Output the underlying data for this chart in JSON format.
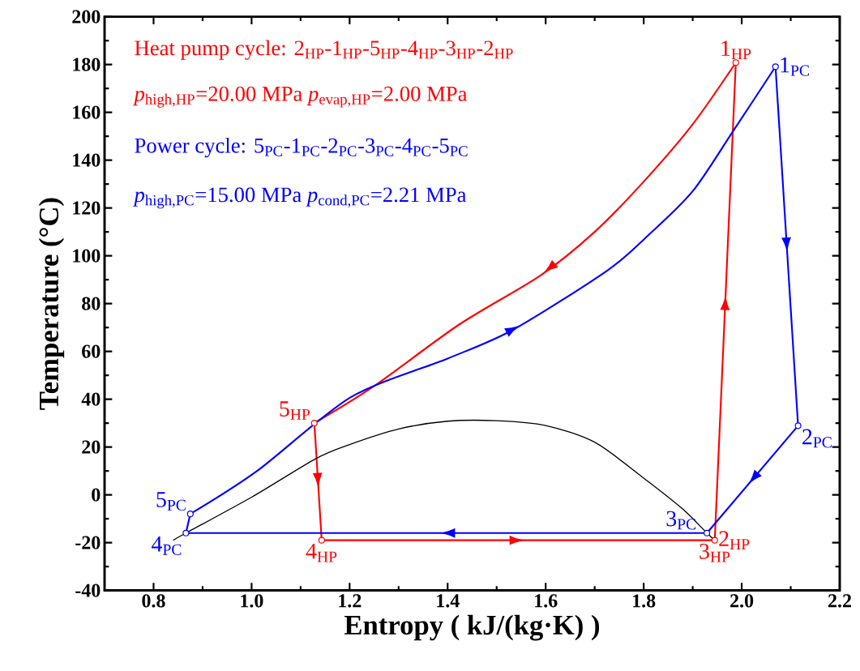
{
  "chart_data": {
    "type": "line",
    "xlabel": "Entropy ( kJ/(kg·K) )",
    "ylabel": "Temperature (°C)",
    "xlim": [
      0.7,
      2.2
    ],
    "ylim": [
      -40,
      200
    ],
    "xticks": [
      0.8,
      {
        "value": 1,
        "label": "1.0"
      },
      1.2,
      1.4,
      1.6,
      1.8,
      {
        "value": 2,
        "label": "2.0"
      },
      2.2
    ],
    "yticks": [
      -40,
      -20,
      0,
      20,
      40,
      60,
      80,
      100,
      120,
      140,
      160,
      180,
      200
    ],
    "series": [
      {
        "color": "#ff0000",
        "marker": "none",
        "x": [
          1.945,
          1.988
        ],
        "values": [
          -19,
          180.8
        ]
      },
      {
        "color": "#ff0000",
        "marker": "none",
        "x": [
          1.988,
          1.9,
          1.8,
          1.7,
          1.589,
          1.424,
          1.25,
          1.128
        ],
        "values": [
          180.8,
          155,
          131,
          110,
          91.7,
          71.3,
          45.5,
          30
        ]
      },
      {
        "color": "#ff0000",
        "marker": "none",
        "x": [
          1.128,
          1.143
        ],
        "values": [
          30,
          -19
        ]
      },
      {
        "color": "#ff0000",
        "marker": "none",
        "x": [
          1.143,
          1.945
        ],
        "values": [
          -19,
          -19
        ]
      },
      {
        "color": "#0000ff",
        "marker": "none",
        "x": [
          0.875,
          1.01,
          1.203,
          1.4,
          1.534,
          1.727,
          1.81,
          1.9,
          1.981,
          2.069
        ],
        "values": [
          -8,
          9.8,
          40.9,
          57,
          69.1,
          94,
          108.7,
          127,
          151.7,
          179.1
        ]
      },
      {
        "color": "#0000ff",
        "marker": "none",
        "x": [
          2.069,
          2.115
        ],
        "values": [
          179.1,
          28.9
        ]
      },
      {
        "color": "#0000ff",
        "marker": "none",
        "x": [
          2.115,
          1.929
        ],
        "values": [
          28.9,
          -16
        ]
      },
      {
        "color": "#0000ff",
        "marker": "none",
        "x": [
          1.929,
          0.866
        ],
        "values": [
          -16,
          -16
        ]
      },
      {
        "color": "#0000ff",
        "marker": "none",
        "x": [
          0.866,
          0.875
        ],
        "values": [
          -16,
          -8
        ]
      },
      {
        "type": "scatter",
        "color": "#ff0000",
        "marker": "circle",
        "x": [
          1.988,
          1.945,
          1.143,
          1.128
        ],
        "values": [
          180.8,
          -19,
          -19,
          30
        ]
      },
      {
        "type": "scatter",
        "color": "#0000ff",
        "marker": "circle",
        "x": [
          2.069,
          2.115,
          1.929,
          0.866,
          0.875
        ],
        "values": [
          179.1,
          28.9,
          -16,
          -16,
          -8
        ]
      },
      {
        "color": "#000000",
        "marker": "none",
        "x": [
          0.84,
          0.866,
          1.0,
          1.13,
          1.2,
          1.3,
          1.4,
          1.5,
          1.6,
          1.7,
          1.8,
          1.88,
          1.929,
          1.945
        ],
        "values": [
          -19,
          -16,
          -1,
          15,
          21,
          27.5,
          30.8,
          31,
          29,
          22,
          7,
          -6,
          -16,
          -19
        ]
      }
    ],
    "annotations": [
      "Heat pump cycle: 2$_{HP}$-1$_{HP}$-5$_{HP}$-4$_{HP}$-3$_{HP}$-2$_{HP}$",
      "*p*$_{high,HP}$=20.00 MPa  *p*$_{evap,HP}$=2.00 MPa",
      "Power cycle: 5$_{PC}$-1$_{PC}$-2$_{PC}$-3$_{PC}$-4$_{PC}$-5$_{PC}$",
      "*p*$_{high,PC}$=15.00 MPa  *p*$_{cond,PC}$=2.21 MPa",
      {
        "text": "1$_{HP}$",
        "x": 1.988,
        "y": 180.8
      },
      {
        "text": "1$_{PC}$",
        "x": 2.069,
        "y": 179.1
      },
      {
        "text": "2$_{PC}$",
        "x": 2.115,
        "y": 28.9
      },
      {
        "text": "3$_{PC}$",
        "x": 1.929,
        "y": -16
      },
      {
        "text": "2$_{HP}$",
        "x": 1.945,
        "y": -19
      },
      {
        "text": "3$_{HP}$",
        "x": 1.945,
        "y": -19
      },
      {
        "text": "4$_{HP}$",
        "x": 1.143,
        "y": -19
      },
      {
        "text": "4$_{PC}$",
        "x": 0.866,
        "y": -16
      },
      {
        "text": "5$_{PC}$",
        "x": 0.875,
        "y": -8
      },
      {
        "text": "5$_{HP}$",
        "x": 1.128,
        "y": 30
      }
    ]
  }
}
